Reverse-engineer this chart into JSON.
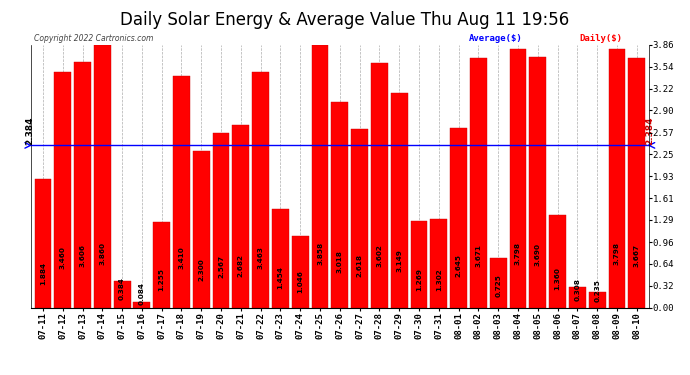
{
  "title": "Daily Solar Energy & Average Value Thu Aug 11 19:56",
  "copyright": "Copyright 2022 Cartronics.com",
  "average_label": "Average($)",
  "daily_label": "Daily($)",
  "average_value": 2.384,
  "categories": [
    "07-11",
    "07-12",
    "07-13",
    "07-14",
    "07-15",
    "07-16",
    "07-17",
    "07-18",
    "07-19",
    "07-20",
    "07-21",
    "07-22",
    "07-23",
    "07-24",
    "07-25",
    "07-26",
    "07-27",
    "07-28",
    "07-29",
    "07-30",
    "07-31",
    "08-01",
    "08-02",
    "08-03",
    "08-04",
    "08-05",
    "08-06",
    "08-07",
    "08-08",
    "08-09",
    "08-10"
  ],
  "values": [
    1.884,
    3.46,
    3.606,
    3.86,
    0.384,
    0.084,
    1.255,
    3.41,
    2.3,
    2.567,
    2.682,
    3.463,
    1.454,
    1.046,
    3.858,
    3.018,
    2.618,
    3.602,
    3.149,
    1.269,
    1.302,
    2.645,
    3.671,
    0.725,
    3.798,
    3.69,
    1.36,
    0.308,
    0.235,
    3.798,
    3.667
  ],
  "bar_color": "#ff0000",
  "bar_edge_color": "#cc0000",
  "avg_line_color": "#0000ff",
  "background_color": "#ffffff",
  "plot_bg_color": "#ffffff",
  "grid_color": "#999999",
  "title_color": "#000000",
  "ylabel_right_values": [
    0.0,
    0.32,
    0.64,
    0.96,
    1.29,
    1.61,
    1.93,
    2.25,
    2.57,
    2.9,
    3.22,
    3.54,
    3.86
  ],
  "ylim": [
    0,
    3.86
  ],
  "title_fontsize": 12,
  "tick_fontsize": 6.5,
  "value_fontsize": 5.2,
  "bar_width": 0.85
}
